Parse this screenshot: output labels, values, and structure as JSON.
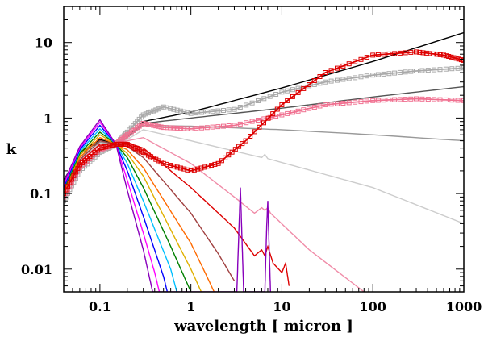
{
  "chart_data": {
    "type": "line",
    "title": "",
    "xlabel": "wavelength [ micron ]",
    "ylabel": "k",
    "xscale": "log",
    "yscale": "log",
    "xlim": [
      0.04,
      1000
    ],
    "ylim": [
      0.005,
      30
    ],
    "grid": false,
    "legend": "none",
    "x_ticks": [
      {
        "value": 0.1,
        "label": "0.1"
      },
      {
        "value": 1,
        "label": "1"
      },
      {
        "value": 10,
        "label": "10"
      },
      {
        "value": 100,
        "label": "100"
      },
      {
        "value": 1000,
        "label": "1000"
      }
    ],
    "y_ticks": [
      {
        "value": 0.01,
        "label": "0.01"
      },
      {
        "value": 0.1,
        "label": "0.1"
      },
      {
        "value": 1,
        "label": "1"
      },
      {
        "value": 10,
        "label": "10"
      }
    ],
    "series": [
      {
        "color": "#000000",
        "points": [
          [
            0.04,
            0.15
          ],
          [
            0.06,
            0.35
          ],
          [
            0.1,
            0.52
          ],
          [
            0.15,
            0.45
          ],
          [
            0.2,
            0.55
          ],
          [
            0.3,
            0.9
          ],
          [
            1,
            1.2
          ],
          [
            10,
            2.5
          ],
          [
            100,
            5.6
          ],
          [
            1000,
            13.5
          ]
        ]
      },
      {
        "color": "#555555",
        "points": [
          [
            0.04,
            0.14
          ],
          [
            0.06,
            0.33
          ],
          [
            0.1,
            0.5
          ],
          [
            0.15,
            0.45
          ],
          [
            0.2,
            0.55
          ],
          [
            0.3,
            0.85
          ],
          [
            1,
            1.0
          ],
          [
            10,
            1.35
          ],
          [
            100,
            1.9
          ],
          [
            1000,
            2.6
          ]
        ]
      },
      {
        "color": "#999999",
        "points": [
          [
            0.04,
            0.13
          ],
          [
            0.06,
            0.3
          ],
          [
            0.1,
            0.48
          ],
          [
            0.15,
            0.45
          ],
          [
            0.2,
            0.55
          ],
          [
            0.3,
            0.8
          ],
          [
            1,
            0.78
          ],
          [
            10,
            0.7
          ],
          [
            100,
            0.6
          ],
          [
            1000,
            0.5
          ]
        ]
      },
      {
        "color": "#cccccc",
        "points": [
          [
            0.04,
            0.12
          ],
          [
            0.06,
            0.28
          ],
          [
            0.1,
            0.46
          ],
          [
            0.15,
            0.45
          ],
          [
            0.2,
            0.52
          ],
          [
            0.3,
            0.7
          ],
          [
            1,
            0.5
          ],
          [
            6,
            0.3
          ],
          [
            6.5,
            0.33
          ],
          [
            7,
            0.29
          ],
          [
            100,
            0.12
          ],
          [
            1000,
            0.04
          ]
        ]
      },
      {
        "color": "#f08ca8",
        "points": [
          [
            0.04,
            0.11
          ],
          [
            0.06,
            0.27
          ],
          [
            0.1,
            0.45
          ],
          [
            0.15,
            0.45
          ],
          [
            0.2,
            0.5
          ],
          [
            0.3,
            0.55
          ],
          [
            1,
            0.25
          ],
          [
            3,
            0.09
          ],
          [
            5,
            0.055
          ],
          [
            6,
            0.065
          ],
          [
            6.5,
            0.06
          ],
          [
            7,
            0.065
          ],
          [
            7.5,
            0.055
          ],
          [
            20,
            0.018
          ],
          [
            80,
            0.005
          ]
        ]
      },
      {
        "color": "#dd0000",
        "points": [
          [
            0.04,
            0.1
          ],
          [
            0.06,
            0.26
          ],
          [
            0.1,
            0.45
          ],
          [
            0.15,
            0.45
          ],
          [
            0.2,
            0.47
          ],
          [
            0.3,
            0.4
          ],
          [
            1,
            0.12
          ],
          [
            3,
            0.035
          ],
          [
            5,
            0.015
          ],
          [
            6,
            0.018
          ],
          [
            6.5,
            0.015
          ],
          [
            7,
            0.02
          ],
          [
            8,
            0.012
          ],
          [
            10,
            0.009
          ],
          [
            11,
            0.012
          ],
          [
            12,
            0.006
          ]
        ]
      },
      {
        "color": "#a04040",
        "points": [
          [
            0.04,
            0.1
          ],
          [
            0.06,
            0.28
          ],
          [
            0.1,
            0.5
          ],
          [
            0.15,
            0.45
          ],
          [
            0.2,
            0.42
          ],
          [
            0.3,
            0.3
          ],
          [
            1,
            0.055
          ],
          [
            2,
            0.016
          ],
          [
            3,
            0.007
          ]
        ]
      },
      {
        "color": "#ff6a00",
        "points": [
          [
            0.04,
            0.1
          ],
          [
            0.06,
            0.3
          ],
          [
            0.1,
            0.55
          ],
          [
            0.15,
            0.45
          ],
          [
            0.2,
            0.38
          ],
          [
            0.3,
            0.22
          ],
          [
            1,
            0.022
          ],
          [
            1.5,
            0.008
          ],
          [
            1.8,
            0.005
          ]
        ]
      },
      {
        "color": "#e0b000",
        "points": [
          [
            0.04,
            0.11
          ],
          [
            0.06,
            0.32
          ],
          [
            0.1,
            0.6
          ],
          [
            0.15,
            0.45
          ],
          [
            0.2,
            0.34
          ],
          [
            0.3,
            0.17
          ],
          [
            1,
            0.01
          ],
          [
            1.3,
            0.005
          ]
        ]
      },
      {
        "color": "#008000",
        "points": [
          [
            0.04,
            0.11
          ],
          [
            0.06,
            0.34
          ],
          [
            0.1,
            0.65
          ],
          [
            0.15,
            0.45
          ],
          [
            0.2,
            0.3
          ],
          [
            0.3,
            0.12
          ],
          [
            0.6,
            0.02
          ],
          [
            1,
            0.005
          ]
        ]
      },
      {
        "color": "#00c0ff",
        "points": [
          [
            0.04,
            0.12
          ],
          [
            0.06,
            0.36
          ],
          [
            0.1,
            0.72
          ],
          [
            0.15,
            0.45
          ],
          [
            0.2,
            0.25
          ],
          [
            0.3,
            0.08
          ],
          [
            0.6,
            0.01
          ],
          [
            0.7,
            0.005
          ]
        ]
      },
      {
        "color": "#0000ff",
        "points": [
          [
            0.04,
            0.12
          ],
          [
            0.06,
            0.38
          ],
          [
            0.1,
            0.8
          ],
          [
            0.15,
            0.45
          ],
          [
            0.2,
            0.2
          ],
          [
            0.3,
            0.05
          ],
          [
            0.5,
            0.008
          ],
          [
            0.55,
            0.005
          ]
        ]
      },
      {
        "color": "#ff00ff",
        "points": [
          [
            0.04,
            0.13
          ],
          [
            0.06,
            0.4
          ],
          [
            0.1,
            0.88
          ],
          [
            0.15,
            0.45
          ],
          [
            0.2,
            0.15
          ],
          [
            0.3,
            0.03
          ],
          [
            0.4,
            0.009
          ],
          [
            0.45,
            0.005
          ]
        ]
      },
      {
        "color": "#8800bb",
        "points": [
          [
            0.04,
            0.14
          ],
          [
            0.06,
            0.42
          ],
          [
            0.1,
            0.95
          ],
          [
            0.15,
            0.45
          ],
          [
            0.2,
            0.11
          ],
          [
            0.3,
            0.018
          ],
          [
            0.38,
            0.005
          ],
          [
            3.2,
            0.005
          ],
          [
            3.4,
            0.045
          ],
          [
            3.5,
            0.12
          ],
          [
            3.6,
            0.04
          ],
          [
            3.8,
            0.005
          ],
          [
            6.5,
            0.005
          ],
          [
            6.8,
            0.035
          ],
          [
            7,
            0.08
          ],
          [
            7.2,
            0.025
          ],
          [
            7.5,
            0.005
          ]
        ]
      },
      {
        "color": "#aaaaaa",
        "marker": "square",
        "points": [
          [
            0.04,
            0.08
          ],
          [
            0.06,
            0.2
          ],
          [
            0.1,
            0.35
          ],
          [
            0.15,
            0.45
          ],
          [
            0.2,
            0.65
          ],
          [
            0.3,
            1.1
          ],
          [
            0.5,
            1.4
          ],
          [
            1,
            1.15
          ],
          [
            3,
            1.3
          ],
          [
            10,
            2.2
          ],
          [
            30,
            3.0
          ],
          [
            100,
            3.7
          ],
          [
            300,
            4.2
          ],
          [
            1000,
            4.6
          ]
        ]
      },
      {
        "color": "#f07090",
        "marker": "square",
        "points": [
          [
            0.04,
            0.09
          ],
          [
            0.06,
            0.22
          ],
          [
            0.1,
            0.38
          ],
          [
            0.15,
            0.45
          ],
          [
            0.2,
            0.6
          ],
          [
            0.3,
            0.85
          ],
          [
            0.5,
            0.75
          ],
          [
            1,
            0.72
          ],
          [
            3,
            0.8
          ],
          [
            10,
            1.1
          ],
          [
            30,
            1.5
          ],
          [
            100,
            1.7
          ],
          [
            300,
            1.8
          ],
          [
            1000,
            1.7
          ]
        ]
      },
      {
        "color": "#dd0000",
        "marker": "square",
        "points": [
          [
            0.04,
            0.1
          ],
          [
            0.06,
            0.24
          ],
          [
            0.1,
            0.4
          ],
          [
            0.15,
            0.45
          ],
          [
            0.2,
            0.45
          ],
          [
            0.3,
            0.35
          ],
          [
            0.5,
            0.25
          ],
          [
            1,
            0.2
          ],
          [
            2,
            0.25
          ],
          [
            4,
            0.5
          ],
          [
            10,
            1.5
          ],
          [
            30,
            4.0
          ],
          [
            100,
            6.8
          ],
          [
            300,
            7.5
          ],
          [
            600,
            6.8
          ],
          [
            1000,
            5.8
          ]
        ]
      }
    ]
  }
}
